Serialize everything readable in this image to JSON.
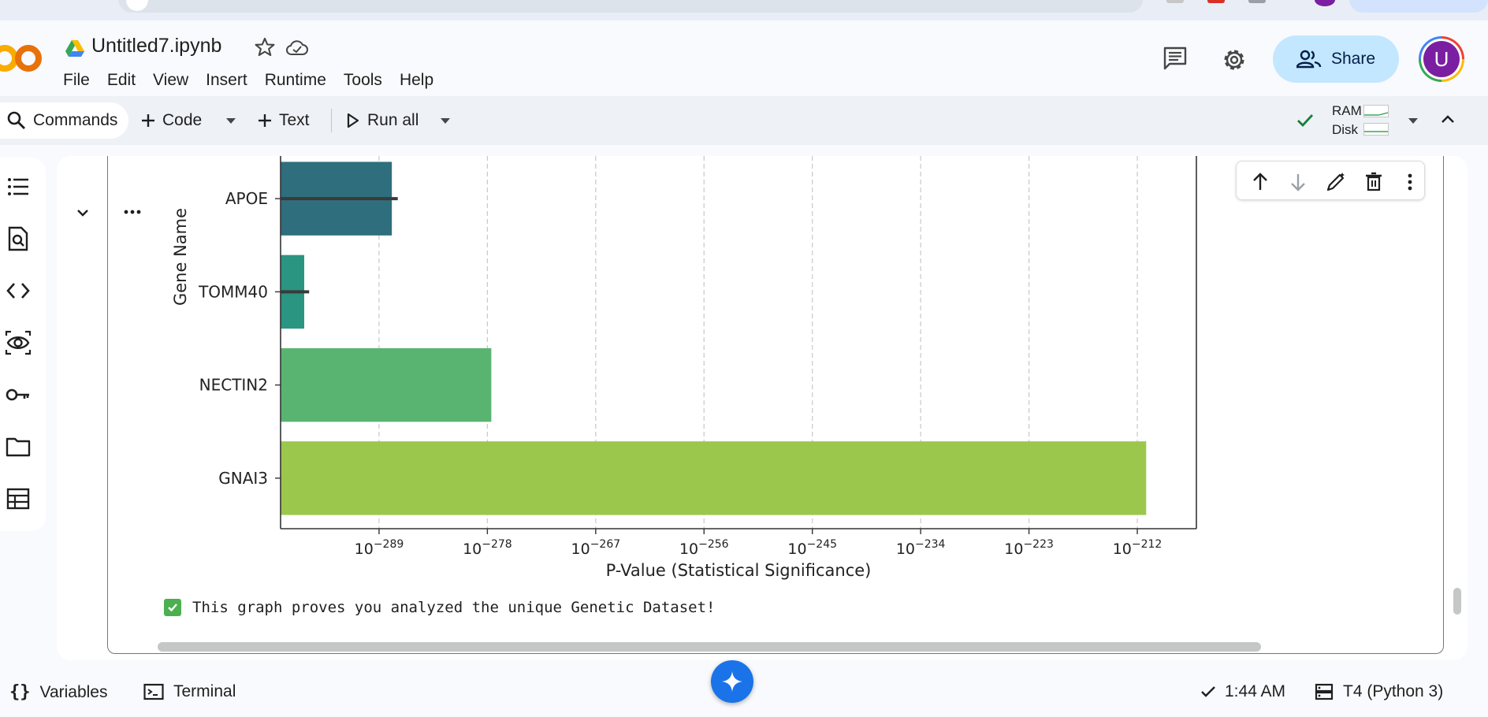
{
  "header": {
    "doc_title": "Untitled7.ipynb",
    "menu": [
      "File",
      "Edit",
      "View",
      "Insert",
      "Runtime",
      "Tools",
      "Help"
    ],
    "share_label": "Share",
    "avatar_letter": "U"
  },
  "toolbar": {
    "commands_label": "Commands",
    "code_label": "Code",
    "text_label": "Text",
    "run_all_label": "Run all",
    "ram_label": "RAM",
    "disk_label": "Disk"
  },
  "left_rail": {
    "icons": [
      "toc-icon",
      "find-icon",
      "code-snippets-icon",
      "variables-inspector-icon",
      "secrets-key-icon",
      "files-folder-icon",
      "data-table-icon"
    ]
  },
  "cell": {
    "output_text": "This graph proves you analyzed the unique Genetic Dataset!"
  },
  "chart_data": {
    "type": "bar",
    "orientation": "horizontal",
    "xscale": "log",
    "ylabel": "Gene Name",
    "xlabel": "P-Value (Statistical Significance)",
    "categories": [
      "APOE",
      "TOMM40",
      "NECTIN2",
      "GNAI3"
    ],
    "values_log10": [
      -287.7,
      -296.6,
      -277.6,
      -211.1
    ],
    "error_log10_upper": [
      -287.1,
      -296.1,
      null,
      null
    ],
    "xlim_log10": [
      -299,
      -206
    ],
    "xticks_log10": [
      -289,
      -278,
      -267,
      -256,
      -245,
      -234,
      -223,
      -212
    ],
    "xtick_labels": [
      "10−289",
      "10−278",
      "10−267",
      "10−256",
      "10−245",
      "10−234",
      "10−223",
      "10−212"
    ],
    "grid": "x-dashed",
    "colors": [
      "#2f6e7d",
      "#2a9580",
      "#5ab471",
      "#9bc74d"
    ]
  },
  "status_bar": {
    "variables_label": "Variables",
    "terminal_label": "Terminal",
    "time": "1:44 AM",
    "runtime": "T4 (Python 3)"
  }
}
